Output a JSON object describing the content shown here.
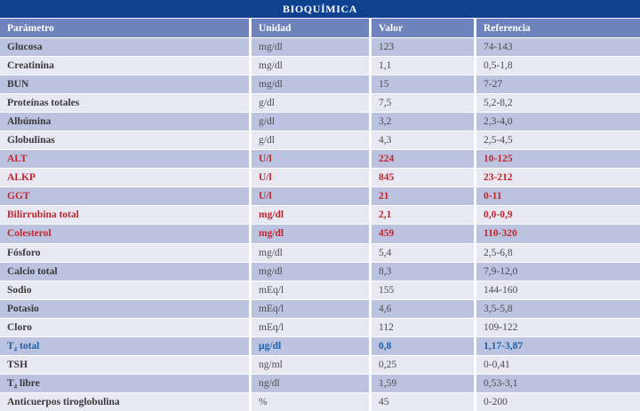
{
  "title": "BIOQUÍMICA",
  "columns": [
    "Parámetro",
    "Unidad",
    "Valor",
    "Referencia"
  ],
  "rows": [
    {
      "param": "Glucosa",
      "unit": "mg/dl",
      "value": "123",
      "ref": "74-143",
      "highlight": "none"
    },
    {
      "param": "Creatinina",
      "unit": "mg/dl",
      "value": "1,1",
      "ref": "0,5-1,8",
      "highlight": "none"
    },
    {
      "param": "BUN",
      "unit": "mg/dl",
      "value": "15",
      "ref": "7-27",
      "highlight": "none"
    },
    {
      "param": "Proteínas totales",
      "unit": "g/dl",
      "value": "7,5",
      "ref": "5,2-8,2",
      "highlight": "none"
    },
    {
      "param": "Albúmina",
      "unit": "g/dl",
      "value": "3,2",
      "ref": "2,3-4,0",
      "highlight": "none"
    },
    {
      "param": "Globulinas",
      "unit": "g/dl",
      "value": "4,3",
      "ref": "2,5-4,5",
      "highlight": "none"
    },
    {
      "param": "ALT",
      "unit": "U/l",
      "value": "224",
      "ref": "10-125",
      "highlight": "red"
    },
    {
      "param": "ALKP",
      "unit": "U/l",
      "value": "845",
      "ref": "23-212",
      "highlight": "red"
    },
    {
      "param": "GGT",
      "unit": "U/l",
      "value": "21",
      "ref": "0-11",
      "highlight": "red"
    },
    {
      "param": "Bilirrubina total",
      "unit": "mg/dl",
      "value": "2,1",
      "ref": "0,0-0,9",
      "highlight": "red"
    },
    {
      "param": "Colesterol",
      "unit": "mg/dl",
      "value": "459",
      "ref": "110-320",
      "highlight": "red"
    },
    {
      "param": "Fósforo",
      "unit": "mg/dl",
      "value": "5,4",
      "ref": "2,5-6,8",
      "highlight": "none"
    },
    {
      "param": "Calcio total",
      "unit": "mg/dl",
      "value": "8,3",
      "ref": "7,9-12,0",
      "highlight": "none"
    },
    {
      "param": "Sodio",
      "unit": "mEq/l",
      "value": "155",
      "ref": "144-160",
      "highlight": "none"
    },
    {
      "param": "Potasio",
      "unit": "mEq/l",
      "value": "4,6",
      "ref": "3,5-5,8",
      "highlight": "none"
    },
    {
      "param": "Cloro",
      "unit": "mEq/l",
      "value": "112",
      "ref": "109-122",
      "highlight": "none"
    },
    {
      "param": "T₄ total",
      "unit": "µg/dl",
      "value": "0,8",
      "ref": "1,17-3,87",
      "highlight": "blue"
    },
    {
      "param": "TSH",
      "unit": "ng/ml",
      "value": "0,25",
      "ref": "0-0,41",
      "highlight": "none"
    },
    {
      "param": "T₄ libre",
      "unit": "ng/dl",
      "value": "1,59",
      "ref": "0,53-3,1",
      "highlight": "none"
    },
    {
      "param": "Anticuerpos tiroglobulina",
      "unit": "%",
      "value": "45",
      "ref": "0-200",
      "highlight": "none"
    }
  ],
  "colors": {
    "title_bg": "#0e418f",
    "header_bg": "#6f83bd",
    "row_dark": "#bcc3e1",
    "row_light": "#e7e8f2",
    "red": "#c1262d",
    "blue": "#1c60a7",
    "text_param": "#3a3a3a",
    "text_normal": "#4d4d4d"
  }
}
